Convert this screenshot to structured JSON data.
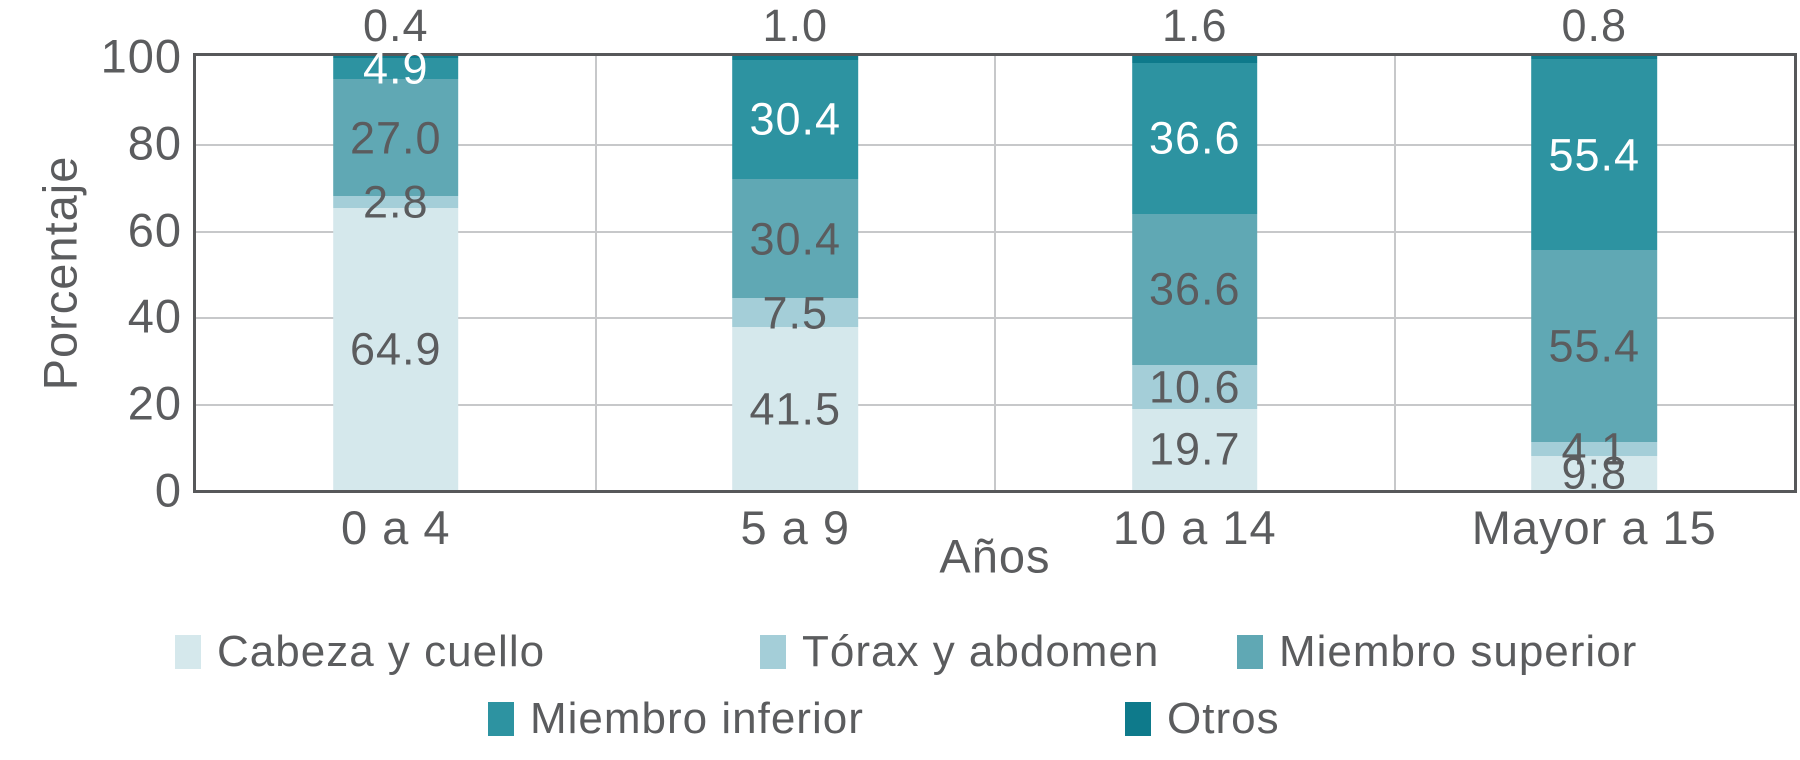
{
  "chart_data": {
    "type": "bar",
    "stacked": true,
    "bars_normalized_to_100": true,
    "title": "",
    "xlabel": "Años",
    "ylabel": "Porcentaje",
    "ylim": [
      0,
      100
    ],
    "yticks": [
      0,
      20,
      40,
      60,
      80,
      100
    ],
    "categories": [
      "0 a 4",
      "5 a 9",
      "10 a 14",
      "Mayor a 15"
    ],
    "series": [
      {
        "name": "Cabeza y cuello",
        "color": "#d5e8ec",
        "label_color": "#5b5c5e",
        "label_placement": "center",
        "values": [
          64.9,
          41.5,
          19.7,
          9.8
        ]
      },
      {
        "name": "Tórax y abdomen",
        "color": "#a4ced8",
        "label_color": "#5b5c5e",
        "label_placement": "center",
        "values": [
          2.8,
          7.5,
          10.6,
          4.1
        ]
      },
      {
        "name": "Miembro superior",
        "color": "#60a8b4",
        "label_color": "#5b5c5e",
        "label_placement": "center",
        "values": [
          27.0,
          30.4,
          36.6,
          55.4
        ]
      },
      {
        "name": "Miembro inferior",
        "color": "#2d93a1",
        "label_color": "#ffffff",
        "label_placement": "center",
        "values": [
          4.9,
          30.4,
          36.6,
          55.4
        ]
      },
      {
        "name": "Otros",
        "color": "#0e7a8b",
        "label_color": "#5b5c5e",
        "label_placement": "above",
        "values": [
          0.4,
          1.0,
          1.6,
          0.8
        ]
      }
    ],
    "value_label_decimals": 1,
    "grid": true,
    "legend_position": "bottom",
    "legend_rows": [
      [
        0,
        1,
        2
      ],
      [
        3,
        4
      ]
    ],
    "style": {
      "text_color": "#5b5c5e",
      "grid_color": "#c7c8ca",
      "border_color": "#57585a",
      "background": "#ffffff"
    }
  }
}
